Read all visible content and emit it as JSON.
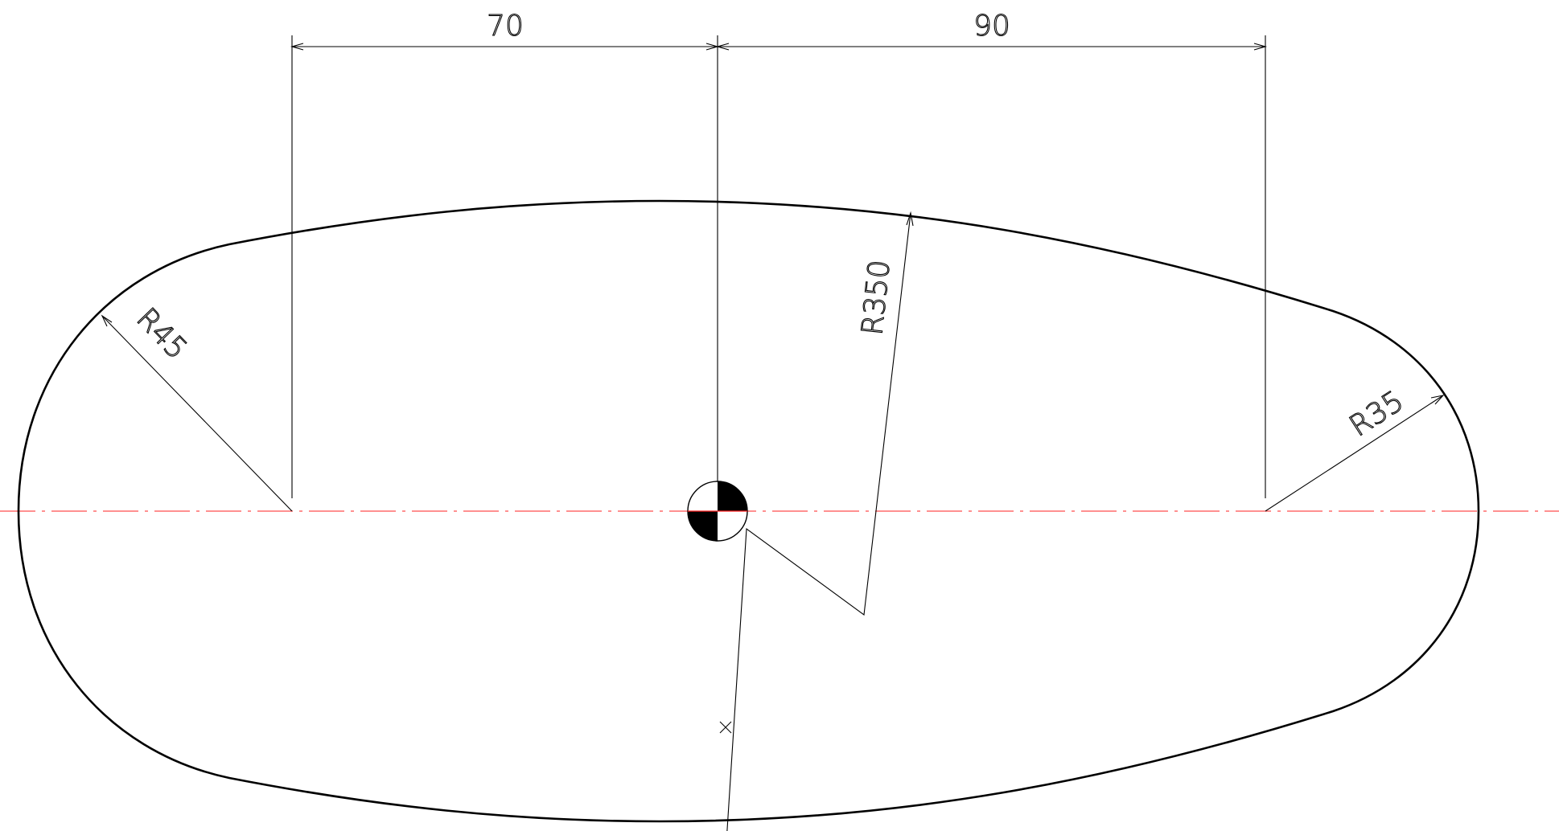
{
  "drawing": {
    "dimensions": {
      "left_span": "70",
      "right_span": "90",
      "left_radius": "R45",
      "top_radius": "R350",
      "right_radius": "R35"
    },
    "colors": {
      "outline": "#000000",
      "centerline": "#ff2020",
      "background": "#ffffff"
    },
    "icons": {
      "center_mark": "center-of-gravity-symbol",
      "arc_center": "cross-mark"
    }
  }
}
